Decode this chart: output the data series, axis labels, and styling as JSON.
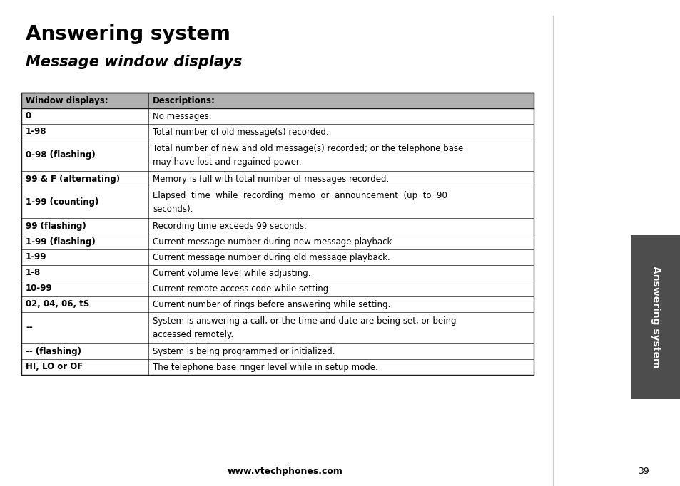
{
  "title": "Answering system",
  "subtitle": "Message window displays",
  "page_number": "39",
  "website": "www.vtechphones.com",
  "tab_text": "Answering system",
  "tab_color": "#4d4d4d",
  "tab_text_color": "#ffffff",
  "header_bg": "#b0b0b0",
  "col1_header": "Window displays:",
  "col2_header": "Descriptions:",
  "rows": [
    {
      "col1": "0",
      "col2": "No messages."
    },
    {
      "col1": "1-98",
      "col2": "Total number of old message(s) recorded."
    },
    {
      "col1": "0-98 (flashing)",
      "col2": "Total number of new and old message(s) recorded; or the telephone base\nmay have lost and regained power."
    },
    {
      "col1": "99 & F (alternating)",
      "col2": "Memory is full with total number of messages recorded."
    },
    {
      "col1": "1-99 (counting)",
      "col2": "Elapsed  time  while  recording  memo  or  announcement  (up  to  90\nseconds)."
    },
    {
      "col1": "99 (flashing)",
      "col2": "Recording time exceeds 99 seconds."
    },
    {
      "col1": "1-99 (flashing)",
      "col2": "Current message number during new message playback."
    },
    {
      "col1": "1-99",
      "col2": "Current message number during old message playback."
    },
    {
      "col1": "1-8",
      "col2": "Current volume level while adjusting."
    },
    {
      "col1": "10-99",
      "col2": "Current remote access code while setting."
    },
    {
      "col1": "02, 04, 06, tS",
      "col2": "Current number of rings before answering while setting."
    },
    {
      "col1": "--",
      "col2": "System is answering a call, or the time and date are being set, or being\naccessed remotely."
    },
    {
      "col1": "-- (flashing)",
      "col2": "System is being programmed or initialized."
    },
    {
      "col1": "HI, LO or OF",
      "col2": "The telephone base ringer level while in setup mode."
    }
  ],
  "bg_color": "#ffffff",
  "border_color": "#1a1a1a",
  "line_color": "#555555"
}
